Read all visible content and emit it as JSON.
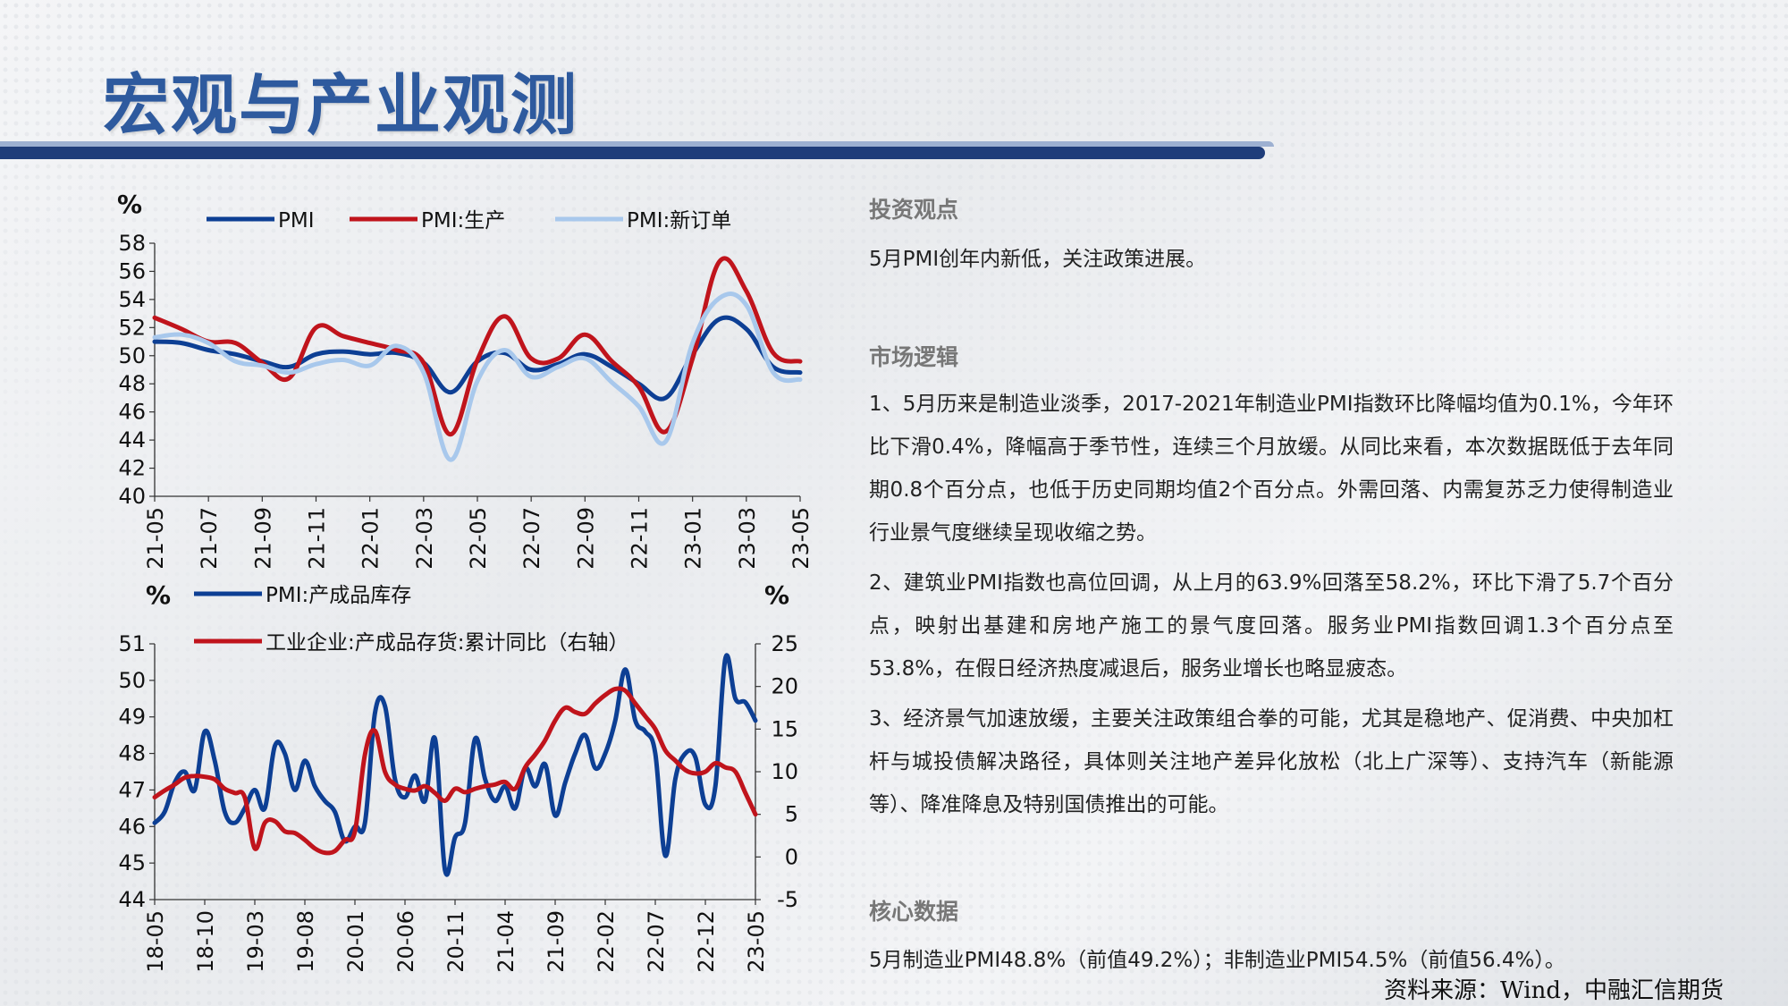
{
  "page": {
    "title": "宏观与产业观测",
    "source": "资料来源：Wind，中融汇信期货"
  },
  "right": {
    "sec1_title": "投资观点",
    "sec1_text": "5月PMI创年内新低，关注政策进展。",
    "sec2_title": "市场逻辑",
    "sec2_p1": "1、5月历来是制造业淡季，2017-2021年制造业PMI指数环比降幅均值为0.1%，今年环比下滑0.4%，降幅高于季节性，连续三个月放缓。从同比来看，本次数据既低于去年同期0.8个百分点，也低于历史同期均值2个百分点。外需回落、内需复苏乏力使得制造业行业景气度继续呈现收缩之势。",
    "sec2_p2": "2、建筑业PMI指数也高位回调，从上月的63.9%回落至58.2%，环比下滑了5.7个百分点，映射出基建和房地产施工的景气度回落。服务业PMI指数回调1.3个百分点至53.8%，在假日经济热度减退后，服务业增长也略显疲态。",
    "sec2_p3": "3、经济景气加速放缓，主要关注政策组合拳的可能，尤其是稳地产、促消费、中央加杠杆与城投债解决路径，具体则关注地产差异化放松（北上广深等）、支持汽车（新能源等）、降准降息及特别国债推出的可能。",
    "sec3_title": "核心数据",
    "sec3_text": "5月制造业PMI48.8%（前值49.2%）；非制造业PMI54.5%（前值56.4%）。"
  },
  "chart_data": [
    {
      "type": "line",
      "ylabel": "%",
      "ylim": [
        40,
        58
      ],
      "yticks": [
        40,
        42,
        44,
        46,
        48,
        50,
        52,
        54,
        56,
        58
      ],
      "x": [
        "21-05",
        "21-06",
        "21-07",
        "21-08",
        "21-09",
        "21-10",
        "21-11",
        "21-12",
        "22-01",
        "22-02",
        "22-03",
        "22-04",
        "22-05",
        "22-06",
        "22-07",
        "22-08",
        "22-09",
        "22-10",
        "22-11",
        "22-12",
        "23-01",
        "23-02",
        "23-03",
        "23-04",
        "23-05"
      ],
      "xtick_labels": [
        "21-05",
        "21-07",
        "21-09",
        "21-11",
        "22-01",
        "22-03",
        "22-05",
        "22-07",
        "22-09",
        "22-11",
        "23-01",
        "23-03",
        "23-05"
      ],
      "series": [
        {
          "name": "PMI",
          "color": "#0d3f94",
          "values": [
            51.0,
            50.9,
            50.4,
            50.1,
            49.6,
            49.2,
            50.1,
            50.3,
            50.1,
            50.2,
            49.5,
            47.4,
            49.6,
            50.2,
            49.0,
            49.4,
            50.1,
            49.2,
            48.0,
            47.0,
            50.1,
            52.6,
            51.9,
            49.2,
            48.8
          ]
        },
        {
          "name": "PMI:生产",
          "color": "#c0141c",
          "values": [
            52.7,
            51.9,
            51.0,
            50.9,
            49.5,
            48.4,
            52.0,
            51.4,
            50.9,
            50.4,
            49.5,
            44.4,
            49.7,
            52.8,
            49.8,
            49.8,
            51.5,
            49.6,
            47.8,
            44.6,
            49.8,
            56.7,
            54.6,
            50.2,
            49.6
          ]
        },
        {
          "name": "PMI:新订单",
          "color": "#a8c8ec",
          "values": [
            51.3,
            51.5,
            50.9,
            49.6,
            49.3,
            48.8,
            49.4,
            49.7,
            49.3,
            50.7,
            48.8,
            42.6,
            48.2,
            50.4,
            48.5,
            49.2,
            49.8,
            48.1,
            46.4,
            43.9,
            50.9,
            54.1,
            53.6,
            48.8,
            48.3
          ]
        }
      ]
    },
    {
      "type": "line",
      "ylabel": "%",
      "ylabel_right": "%",
      "ylim": [
        44,
        51
      ],
      "yticks": [
        44,
        45,
        46,
        47,
        48,
        49,
        50,
        51
      ],
      "ylim_right": [
        -5,
        25
      ],
      "yticks_right": [
        -5,
        0,
        5,
        10,
        15,
        20,
        25
      ],
      "x": [
        "18-05",
        "18-06",
        "18-07",
        "18-08",
        "18-09",
        "18-10",
        "18-11",
        "18-12",
        "19-01",
        "19-02",
        "19-03",
        "19-04",
        "19-05",
        "19-06",
        "19-07",
        "19-08",
        "19-09",
        "19-10",
        "19-11",
        "19-12",
        "20-01",
        "20-02",
        "20-03",
        "20-04",
        "20-05",
        "20-06",
        "20-07",
        "20-08",
        "20-09",
        "20-10",
        "20-11",
        "20-12",
        "21-01",
        "21-02",
        "21-03",
        "21-04",
        "21-05",
        "21-06",
        "21-07",
        "21-08",
        "21-09",
        "21-10",
        "21-11",
        "21-12",
        "22-01",
        "22-02",
        "22-03",
        "22-04",
        "22-05",
        "22-06",
        "22-07",
        "22-08",
        "22-09",
        "22-10",
        "22-11",
        "22-12",
        "23-01",
        "23-02",
        "23-03",
        "23-04",
        "23-05"
      ],
      "xtick_labels": [
        "18-05",
        "18-10",
        "19-03",
        "19-08",
        "20-01",
        "20-06",
        "20-11",
        "21-04",
        "21-09",
        "22-02",
        "22-07",
        "22-12",
        "23-05"
      ],
      "series": [
        {
          "name": "PMI:产成品库存",
          "axis": "left",
          "color": "#0d3f94",
          "values": [
            46.1,
            46.4,
            47.2,
            47.5,
            47.0,
            48.6,
            47.8,
            46.4,
            46.1,
            46.5,
            47.0,
            46.5,
            48.2,
            48.0,
            47.0,
            47.8,
            47.1,
            46.7,
            46.4,
            45.6,
            46.0,
            46.1,
            49.1,
            49.3,
            47.3,
            46.8,
            47.4,
            46.7,
            48.4,
            44.8,
            45.7,
            46.1,
            48.4,
            47.3,
            46.7,
            47.1,
            46.5,
            47.6,
            47.1,
            47.7,
            46.3,
            47.2,
            48.0,
            48.5,
            47.6,
            48.0,
            48.9,
            50.3,
            48.9,
            48.6,
            48.0,
            45.2,
            47.3,
            48.0,
            47.9,
            46.6,
            47.1,
            50.6,
            49.5,
            49.4,
            48.9
          ]
        },
        {
          "name": "工业企业:产成品存货:累计同比（右轴）",
          "axis": "right",
          "color": "#c0141c",
          "values": [
            7.0,
            7.8,
            8.5,
            9.3,
            9.5,
            9.4,
            9.1,
            8.0,
            7.5,
            7.0,
            1.0,
            4.0,
            4.2,
            3.0,
            2.8,
            2.0,
            1.0,
            0.5,
            0.7,
            2.0,
            3.0,
            12.0,
            14.8,
            10.0,
            8.5,
            8.0,
            7.8,
            8.3,
            7.5,
            6.6,
            8.0,
            7.6,
            8.0,
            8.3,
            8.5,
            8.8,
            8.0,
            10.5,
            12.0,
            13.7,
            16.0,
            17.5,
            17.0,
            16.8,
            18.0,
            19.0,
            19.7,
            19.5,
            18.0,
            16.5,
            15.0,
            12.5,
            11.3,
            10.2,
            9.8,
            10.0,
            11.0,
            10.5,
            10.0,
            7.5,
            5.0
          ]
        }
      ]
    }
  ]
}
